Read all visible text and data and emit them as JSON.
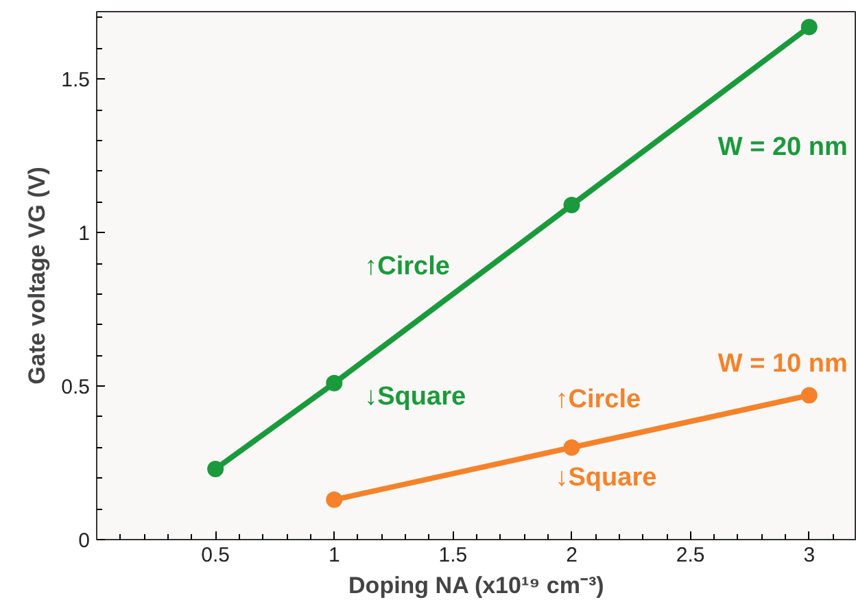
{
  "chart_data": {
    "type": "line",
    "xlabel": "Doping NA (x10¹⁹ cm⁻³)",
    "ylabel": "Gate voltage VG (V)",
    "x": [
      0.5,
      1,
      2,
      3
    ],
    "series": [
      {
        "name": "W = 20 nm",
        "color": "#1a9a3c",
        "values": [
          0.23,
          0.51,
          1.09,
          1.67
        ]
      },
      {
        "name": "W = 10 nm",
        "color": "#f5822a",
        "values": [
          null,
          0.13,
          0.3,
          0.47
        ]
      }
    ],
    "xlim": [
      0,
      3.2
    ],
    "ylim": [
      0,
      1.72
    ],
    "xticks": [
      0.5,
      1,
      1.5,
      2,
      2.5,
      3
    ],
    "yticks": [
      0,
      0.5,
      1,
      1.5
    ],
    "marker": "circle",
    "line_style": "solid",
    "grid": false,
    "annotations": [
      "↑Circle",
      "↓Square",
      "↑Circle",
      "↓Square"
    ]
  }
}
